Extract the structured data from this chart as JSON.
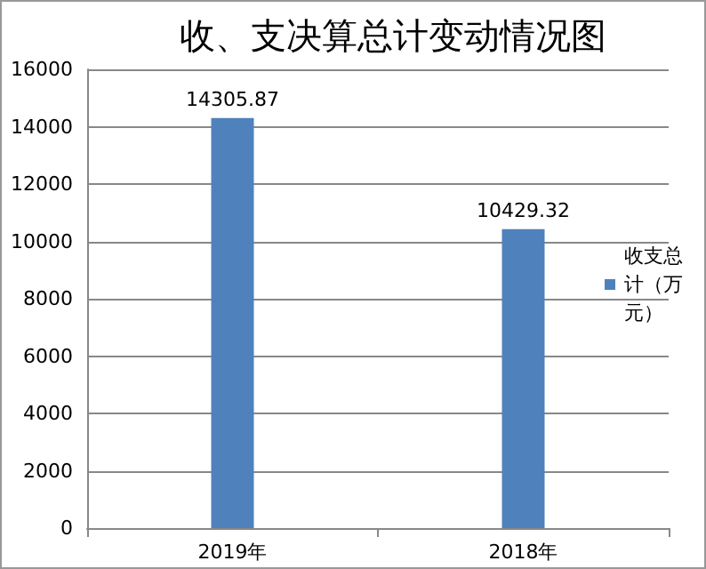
{
  "chart_data": {
    "type": "bar",
    "title": "收、支决算总计变动情况图",
    "categories": [
      "2019年",
      "2018年"
    ],
    "series": [
      {
        "name": "收支总计（万元）",
        "color": "#4f81bd",
        "values": [
          14305.87,
          10429.32
        ]
      }
    ],
    "ylim": [
      0,
      16000
    ],
    "yticks": [
      0,
      2000,
      4000,
      6000,
      8000,
      10000,
      12000,
      14000,
      16000
    ],
    "grid": "y",
    "legend": "right",
    "data_labels": true
  }
}
